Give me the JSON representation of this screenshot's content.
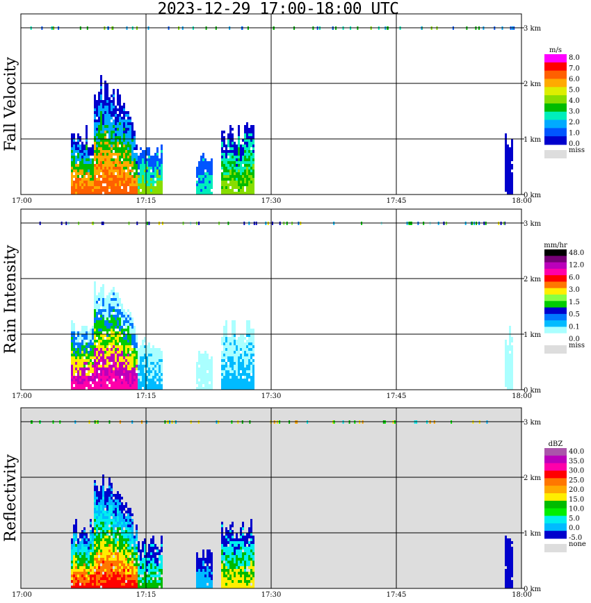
{
  "title": "2023-12-29  17:00-18:00 UTC",
  "x_ticks": [
    "17:00",
    "17:15",
    "17:30",
    "17:45",
    "18:00"
  ],
  "y_ticks": [
    "0 km",
    "1 km",
    "2 km",
    "3 km"
  ],
  "chart_data": [
    {
      "type": "heatmap",
      "ylabel": "Fall Velocity",
      "x_range": [
        "17:00",
        "18:00"
      ],
      "ylim_km": [
        0,
        3
      ],
      "grid": true,
      "background": "#ffffff",
      "legend": {
        "unit": "m/s",
        "placement": "right",
        "colors": [
          "#ff00ff",
          "#ff0000",
          "#ff6000",
          "#ffaa00",
          "#ddee00",
          "#88dd00",
          "#00bb00",
          "#00eebb",
          "#00aaff",
          "#0055ff",
          "#0000cc"
        ],
        "labels": [
          "8.0",
          "7.0",
          "6.0",
          "5.0",
          "4.0",
          "3.0",
          "2.0",
          "1.0",
          "0.0"
        ],
        "missing_label": "miss",
        "missing_color": "#dddddd"
      },
      "echoes": [
        {
          "t": [
            "17:06",
            "17:14"
          ],
          "top_km": 1.15,
          "peak_km": 2.1,
          "core": [
            "#ff6000",
            "#ffaa00",
            "#00bb00",
            "#00aaff",
            "#0000cc"
          ]
        },
        {
          "t": [
            "17:14",
            "17:17"
          ],
          "top_km": 0.9,
          "peak_km": 0.9,
          "core": [
            "#88dd00",
            "#00eebb",
            "#0055ff"
          ]
        },
        {
          "t": [
            "17:21",
            "17:23"
          ],
          "top_km": 0.7,
          "peak_km": 0.7,
          "core": [
            "#00eebb",
            "#0055ff"
          ]
        },
        {
          "t": [
            "17:24",
            "17:28"
          ],
          "top_km": 1.2,
          "peak_km": 1.2,
          "core": [
            "#88dd00",
            "#00bb00",
            "#00eebb",
            "#0000cc"
          ]
        },
        {
          "t": [
            "17:58",
            "17:59"
          ],
          "top_km": 1.1,
          "peak_km": 1.1,
          "core": [
            "#0000cc"
          ]
        }
      ]
    },
    {
      "type": "heatmap",
      "ylabel": "Rain Intensity",
      "x_range": [
        "17:00",
        "18:00"
      ],
      "ylim_km": [
        0,
        3
      ],
      "grid": true,
      "background": "#ffffff",
      "legend": {
        "unit": "mm/hr",
        "placement": "right",
        "colors": [
          "#000000",
          "#770077",
          "#bb00bb",
          "#ff00aa",
          "#ff0000",
          "#ff7700",
          "#ffee00",
          "#88ff44",
          "#00cc00",
          "#0000cc",
          "#0077ff",
          "#00bbff",
          "#aaffff",
          "#ffffff"
        ],
        "labels": [
          "48.0",
          "12.0",
          "6.0",
          "3.0",
          "1.5",
          "0.5",
          "0.1",
          "0.0"
        ],
        "missing_label": "miss",
        "missing_color": "#dddddd"
      },
      "echoes": [
        {
          "t": [
            "17:06",
            "17:14"
          ],
          "top_km": 1.2,
          "peak_km": 2.0,
          "core": [
            "#ff00aa",
            "#bb00bb",
            "#ffee00",
            "#00cc00",
            "#0077ff",
            "#aaffff"
          ]
        },
        {
          "t": [
            "17:14",
            "17:17"
          ],
          "top_km": 0.9,
          "peak_km": 0.9,
          "core": [
            "#00bbff",
            "#aaffff"
          ]
        },
        {
          "t": [
            "17:21",
            "17:23"
          ],
          "top_km": 0.7,
          "peak_km": 0.7,
          "core": [
            "#aaffff"
          ]
        },
        {
          "t": [
            "17:24",
            "17:28"
          ],
          "top_km": 1.2,
          "peak_km": 1.2,
          "core": [
            "#00bbff",
            "#aaffff"
          ]
        },
        {
          "t": [
            "17:58",
            "17:59"
          ],
          "top_km": 1.1,
          "peak_km": 1.1,
          "core": [
            "#aaffff"
          ]
        }
      ]
    },
    {
      "type": "heatmap",
      "ylabel": "Reflectivity",
      "x_range": [
        "17:00",
        "18:00"
      ],
      "ylim_km": [
        0,
        3
      ],
      "grid": true,
      "background": "#dddddd",
      "legend": {
        "unit": "dBZ",
        "placement": "right",
        "colors": [
          "#aa55aa",
          "#bb00bb",
          "#ff00aa",
          "#ff0000",
          "#ff7700",
          "#ffaa00",
          "#ffee00",
          "#00bb00",
          "#00ee00",
          "#00eeee",
          "#00bbff",
          "#0000cc"
        ],
        "labels": [
          "40.0",
          "35.0",
          "30.0",
          "25.0",
          "20.0",
          "15.0",
          "10.0",
          "5.0",
          "0.0",
          "-5.0"
        ],
        "missing_label": "none",
        "missing_color": "#dddddd"
      },
      "echoes": [
        {
          "t": [
            "17:06",
            "17:14"
          ],
          "top_km": 1.2,
          "peak_km": 2.05,
          "core": [
            "#ff0000",
            "#ff7700",
            "#ffee00",
            "#00bb00",
            "#00eeee",
            "#00bbff",
            "#0000cc"
          ]
        },
        {
          "t": [
            "17:14",
            "17:17"
          ],
          "top_km": 0.9,
          "peak_km": 0.9,
          "core": [
            "#00bb00",
            "#00eeee",
            "#0000cc"
          ]
        },
        {
          "t": [
            "17:21",
            "17:23"
          ],
          "top_km": 0.7,
          "peak_km": 0.7,
          "core": [
            "#00bbff",
            "#0000cc"
          ]
        },
        {
          "t": [
            "17:24",
            "17:28"
          ],
          "top_km": 1.2,
          "peak_km": 1.2,
          "core": [
            "#ffee00",
            "#00bb00",
            "#00eeee",
            "#0000cc"
          ]
        },
        {
          "t": [
            "17:58",
            "17:59"
          ],
          "top_km": 1.1,
          "peak_km": 1.1,
          "core": [
            "#0000cc"
          ]
        }
      ]
    }
  ]
}
